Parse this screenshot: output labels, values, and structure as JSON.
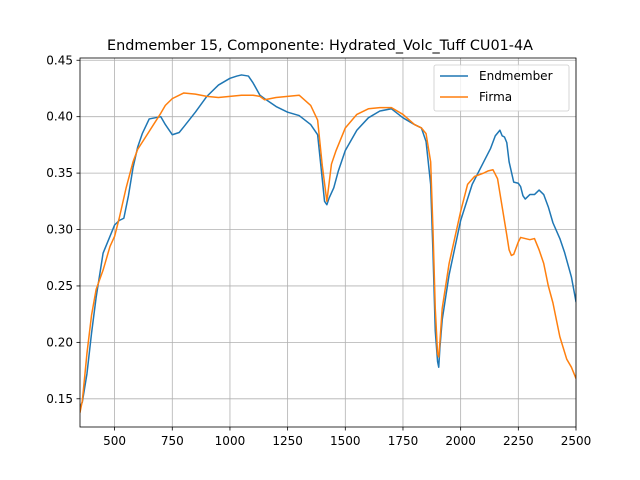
{
  "chart_data": {
    "type": "line",
    "title": "Endmember 15, Componente: Hydrated_Volc_Tuff CU01-4A",
    "xlabel": "",
    "ylabel": "",
    "xlim": [
      350,
      2500
    ],
    "ylim": [
      0.125,
      0.452
    ],
    "xticks": [
      500,
      750,
      1000,
      1250,
      1500,
      1750,
      2000,
      2250,
      2500
    ],
    "yticks": [
      0.15,
      0.2,
      0.25,
      0.3,
      0.35,
      0.4,
      0.45
    ],
    "ytick_labels": [
      "0.15",
      "0.20",
      "0.25",
      "0.30",
      "0.35",
      "0.40",
      "0.45"
    ],
    "grid": true,
    "legend_position": "top-right",
    "series": [
      {
        "name": "Endmember",
        "color": "#1f77b4",
        "x": [
          350,
          360,
          380,
          400,
          420,
          450,
          480,
          500,
          520,
          540,
          560,
          580,
          600,
          620,
          650,
          700,
          720,
          750,
          780,
          800,
          850,
          900,
          950,
          1000,
          1030,
          1050,
          1080,
          1100,
          1130,
          1150,
          1200,
          1250,
          1300,
          1350,
          1380,
          1400,
          1410,
          1420,
          1430,
          1450,
          1470,
          1500,
          1550,
          1600,
          1650,
          1700,
          1750,
          1800,
          1830,
          1850,
          1870,
          1880,
          1890,
          1900,
          1905,
          1910,
          1920,
          1950,
          2000,
          2050,
          2100,
          2130,
          2150,
          2170,
          2180,
          2190,
          2200,
          2210,
          2220,
          2230,
          2250,
          2260,
          2270,
          2280,
          2300,
          2320,
          2340,
          2360,
          2380,
          2400,
          2430,
          2450,
          2480,
          2500
        ],
        "y": [
          0.143,
          0.147,
          0.172,
          0.208,
          0.24,
          0.279,
          0.294,
          0.304,
          0.308,
          0.31,
          0.33,
          0.355,
          0.373,
          0.385,
          0.398,
          0.4,
          0.393,
          0.384,
          0.386,
          0.391,
          0.404,
          0.418,
          0.428,
          0.434,
          0.436,
          0.437,
          0.436,
          0.43,
          0.419,
          0.416,
          0.409,
          0.404,
          0.401,
          0.393,
          0.384,
          0.345,
          0.325,
          0.322,
          0.328,
          0.337,
          0.352,
          0.37,
          0.388,
          0.399,
          0.405,
          0.407,
          0.399,
          0.393,
          0.39,
          0.378,
          0.34,
          0.28,
          0.21,
          0.183,
          0.178,
          0.195,
          0.22,
          0.26,
          0.308,
          0.34,
          0.36,
          0.372,
          0.383,
          0.388,
          0.383,
          0.382,
          0.377,
          0.36,
          0.351,
          0.342,
          0.341,
          0.338,
          0.33,
          0.327,
          0.331,
          0.331,
          0.335,
          0.331,
          0.32,
          0.306,
          0.292,
          0.28,
          0.258,
          0.236
        ]
      },
      {
        "name": "Firma",
        "color": "#ff7f0e",
        "x": [
          350,
          360,
          380,
          400,
          420,
          450,
          480,
          500,
          520,
          550,
          580,
          600,
          650,
          700,
          720,
          750,
          800,
          850,
          900,
          950,
          1000,
          1050,
          1100,
          1130,
          1150,
          1200,
          1250,
          1300,
          1350,
          1380,
          1400,
          1420,
          1440,
          1460,
          1500,
          1550,
          1600,
          1650,
          1700,
          1750,
          1800,
          1830,
          1850,
          1870,
          1880,
          1890,
          1900,
          1905,
          1910,
          1920,
          1950,
          2000,
          2030,
          2060,
          2100,
          2120,
          2140,
          2160,
          2180,
          2200,
          2210,
          2220,
          2230,
          2250,
          2260,
          2280,
          2300,
          2320,
          2340,
          2360,
          2380,
          2400,
          2430,
          2460,
          2480,
          2500
        ],
        "y": [
          0.138,
          0.148,
          0.19,
          0.224,
          0.247,
          0.264,
          0.285,
          0.294,
          0.31,
          0.337,
          0.36,
          0.371,
          0.387,
          0.403,
          0.41,
          0.416,
          0.421,
          0.42,
          0.418,
          0.417,
          0.418,
          0.419,
          0.419,
          0.418,
          0.415,
          0.417,
          0.418,
          0.419,
          0.41,
          0.397,
          0.357,
          0.325,
          0.358,
          0.37,
          0.39,
          0.402,
          0.407,
          0.408,
          0.408,
          0.402,
          0.393,
          0.39,
          0.385,
          0.36,
          0.3,
          0.23,
          0.19,
          0.187,
          0.2,
          0.23,
          0.27,
          0.316,
          0.34,
          0.347,
          0.35,
          0.352,
          0.353,
          0.345,
          0.32,
          0.295,
          0.282,
          0.277,
          0.278,
          0.289,
          0.293,
          0.292,
          0.291,
          0.292,
          0.282,
          0.27,
          0.25,
          0.235,
          0.205,
          0.185,
          0.178,
          0.168
        ]
      }
    ]
  }
}
